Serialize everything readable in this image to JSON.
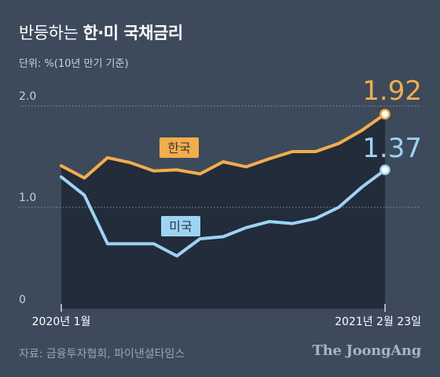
{
  "header": {
    "title_light": "반등하는",
    "title_bold": "한·미 국채금리",
    "subtitle": "단위: %(10년 만기 기준)"
  },
  "footer": {
    "source": "자료: 금융투자협회, 파이낸셜타임스",
    "brand": "The JoongAng"
  },
  "chart_data": {
    "type": "line",
    "y_tick_labels": [
      "2.0",
      "1.0",
      "0"
    ],
    "y_ticks": [
      2.0,
      1.0,
      0
    ],
    "ylim": [
      0,
      2.0
    ],
    "grid": true,
    "x_start_label": "2020년 1월",
    "x_end_label": "2021년 2월 23일",
    "series": [
      {
        "name": "한국",
        "color": "#f3ad4a",
        "end_label": "1.92",
        "values": [
          1.41,
          1.29,
          1.49,
          1.44,
          1.36,
          1.37,
          1.33,
          1.45,
          1.4,
          1.48,
          1.55,
          1.55,
          1.63,
          1.76,
          1.92
        ]
      },
      {
        "name": "미국",
        "color": "#9dd4f3",
        "end_label": "1.37",
        "values": [
          1.3,
          1.12,
          0.64,
          0.64,
          0.64,
          0.52,
          0.69,
          0.71,
          0.8,
          0.86,
          0.84,
          0.89,
          1.0,
          1.2,
          1.37
        ]
      }
    ]
  }
}
